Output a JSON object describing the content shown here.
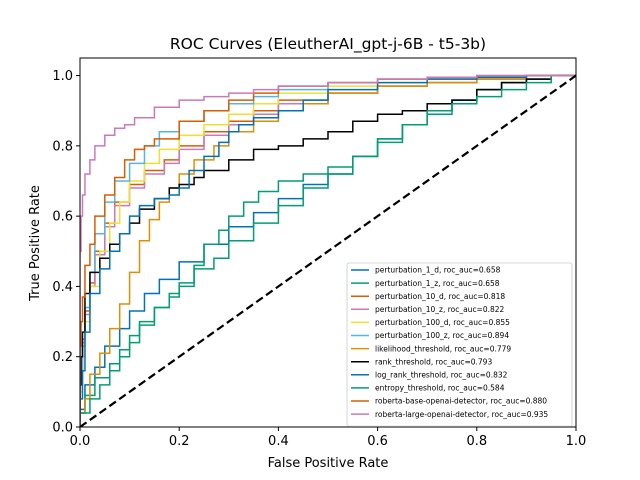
{
  "chart_data": {
    "type": "line",
    "title": "ROC Curves (EleutherAI_gpt-j-6B - t5-3b)",
    "xlabel": "False Positive Rate",
    "ylabel": "True Positive Rate",
    "xlim": [
      0,
      1
    ],
    "ylim": [
      0,
      1.05
    ],
    "xticks": [
      "0.0",
      "0.2",
      "0.4",
      "0.6",
      "0.8",
      "1.0"
    ],
    "yticks": [
      "0.0",
      "0.2",
      "0.4",
      "0.6",
      "0.8",
      "1.0"
    ],
    "grid": false,
    "legend_position": "lower-right",
    "diagonal": {
      "color": "#000000",
      "style": "dashed",
      "points": [
        [
          0,
          0
        ],
        [
          1,
          1
        ]
      ]
    },
    "series": [
      {
        "name": "perturbation_1_d, roc_auc=0.658",
        "color": "#0173b2",
        "points": [
          [
            0,
            0
          ],
          [
            0.01,
            0.05
          ],
          [
            0.03,
            0.12
          ],
          [
            0.05,
            0.17
          ],
          [
            0.08,
            0.23
          ],
          [
            0.1,
            0.28
          ],
          [
            0.13,
            0.33
          ],
          [
            0.16,
            0.38
          ],
          [
            0.2,
            0.42
          ],
          [
            0.25,
            0.47
          ],
          [
            0.3,
            0.52
          ],
          [
            0.35,
            0.57
          ],
          [
            0.4,
            0.61
          ],
          [
            0.45,
            0.65
          ],
          [
            0.5,
            0.69
          ],
          [
            0.55,
            0.72
          ],
          [
            0.6,
            0.77
          ],
          [
            0.65,
            0.82
          ],
          [
            0.7,
            0.86
          ],
          [
            0.75,
            0.9
          ],
          [
            0.8,
            0.93
          ],
          [
            0.85,
            0.96
          ],
          [
            0.9,
            0.98
          ],
          [
            0.95,
            0.99
          ],
          [
            1,
            1
          ]
        ]
      },
      {
        "name": "perturbation_1_z, roc_auc=0.658",
        "color": "#029e73",
        "points": [
          [
            0,
            0
          ],
          [
            0.01,
            0.04
          ],
          [
            0.03,
            0.09
          ],
          [
            0.06,
            0.14
          ],
          [
            0.08,
            0.18
          ],
          [
            0.1,
            0.22
          ],
          [
            0.12,
            0.26
          ],
          [
            0.15,
            0.3
          ],
          [
            0.18,
            0.34
          ],
          [
            0.2,
            0.38
          ],
          [
            0.23,
            0.41
          ],
          [
            0.27,
            0.45
          ],
          [
            0.3,
            0.48
          ],
          [
            0.35,
            0.53
          ],
          [
            0.4,
            0.58
          ],
          [
            0.45,
            0.63
          ],
          [
            0.5,
            0.68
          ],
          [
            0.55,
            0.72
          ],
          [
            0.6,
            0.77
          ],
          [
            0.65,
            0.82
          ],
          [
            0.7,
            0.86
          ],
          [
            0.75,
            0.89
          ],
          [
            0.8,
            0.93
          ],
          [
            0.85,
            0.96
          ],
          [
            0.9,
            0.98
          ],
          [
            0.95,
            0.99
          ],
          [
            1,
            1
          ]
        ]
      },
      {
        "name": "perturbation_10_d, roc_auc=0.818",
        "color": "#d55e00",
        "points": [
          [
            0,
            0
          ],
          [
            0.005,
            0.15
          ],
          [
            0.01,
            0.25
          ],
          [
            0.02,
            0.33
          ],
          [
            0.03,
            0.41
          ],
          [
            0.05,
            0.5
          ],
          [
            0.07,
            0.58
          ],
          [
            0.1,
            0.64
          ],
          [
            0.13,
            0.69
          ],
          [
            0.17,
            0.73
          ],
          [
            0.2,
            0.76
          ],
          [
            0.25,
            0.8
          ],
          [
            0.3,
            0.84
          ],
          [
            0.35,
            0.87
          ],
          [
            0.4,
            0.9
          ],
          [
            0.5,
            0.93
          ],
          [
            0.6,
            0.95
          ],
          [
            0.7,
            0.97
          ],
          [
            0.8,
            0.98
          ],
          [
            0.9,
            0.99
          ],
          [
            1,
            1
          ]
        ]
      },
      {
        "name": "perturbation_10_z, roc_auc=0.822",
        "color": "#cc78bc",
        "points": [
          [
            0,
            0
          ],
          [
            0.005,
            0.14
          ],
          [
            0.01,
            0.24
          ],
          [
            0.02,
            0.32
          ],
          [
            0.03,
            0.4
          ],
          [
            0.05,
            0.49
          ],
          [
            0.07,
            0.57
          ],
          [
            0.1,
            0.63
          ],
          [
            0.13,
            0.68
          ],
          [
            0.17,
            0.72
          ],
          [
            0.2,
            0.75
          ],
          [
            0.25,
            0.79
          ],
          [
            0.3,
            0.83
          ],
          [
            0.35,
            0.86
          ],
          [
            0.4,
            0.89
          ],
          [
            0.5,
            0.92
          ],
          [
            0.6,
            0.95
          ],
          [
            0.7,
            0.97
          ],
          [
            0.8,
            0.98
          ],
          [
            0.9,
            0.99
          ],
          [
            1,
            1
          ]
        ]
      },
      {
        "name": "perturbation_100_d, roc_auc=0.855",
        "color": "#ece133",
        "points": [
          [
            0,
            0
          ],
          [
            0.005,
            0.1
          ],
          [
            0.01,
            0.2
          ],
          [
            0.02,
            0.3
          ],
          [
            0.04,
            0.4
          ],
          [
            0.06,
            0.5
          ],
          [
            0.08,
            0.58
          ],
          [
            0.1,
            0.64
          ],
          [
            0.13,
            0.7
          ],
          [
            0.16,
            0.75
          ],
          [
            0.2,
            0.79
          ],
          [
            0.25,
            0.83
          ],
          [
            0.3,
            0.86
          ],
          [
            0.35,
            0.89
          ],
          [
            0.4,
            0.92
          ],
          [
            0.5,
            0.95
          ],
          [
            0.6,
            0.97
          ],
          [
            0.7,
            0.98
          ],
          [
            0.8,
            0.99
          ],
          [
            0.9,
            0.995
          ],
          [
            1,
            1
          ]
        ]
      },
      {
        "name": "perturbation_100_z, roc_auc=0.894",
        "color": "#56b4e9",
        "points": [
          [
            0,
            0
          ],
          [
            0.005,
            0.12
          ],
          [
            0.01,
            0.23
          ],
          [
            0.02,
            0.34
          ],
          [
            0.03,
            0.44
          ],
          [
            0.05,
            0.55
          ],
          [
            0.07,
            0.64
          ],
          [
            0.1,
            0.7
          ],
          [
            0.13,
            0.75
          ],
          [
            0.16,
            0.8
          ],
          [
            0.2,
            0.84
          ],
          [
            0.25,
            0.87
          ],
          [
            0.3,
            0.9
          ],
          [
            0.35,
            0.92
          ],
          [
            0.4,
            0.94
          ],
          [
            0.5,
            0.96
          ],
          [
            0.6,
            0.98
          ],
          [
            0.7,
            0.99
          ],
          [
            0.8,
            0.995
          ],
          [
            0.9,
            1.0
          ],
          [
            1,
            1
          ]
        ]
      },
      {
        "name": "likelihood_threshold, roc_auc=0.779",
        "color": "#de8f05",
        "points": [
          [
            0,
            0
          ],
          [
            0.01,
            0.04
          ],
          [
            0.02,
            0.08
          ],
          [
            0.04,
            0.15
          ],
          [
            0.06,
            0.21
          ],
          [
            0.08,
            0.28
          ],
          [
            0.1,
            0.35
          ],
          [
            0.12,
            0.44
          ],
          [
            0.14,
            0.53
          ],
          [
            0.16,
            0.59
          ],
          [
            0.18,
            0.64
          ],
          [
            0.2,
            0.68
          ],
          [
            0.23,
            0.72
          ],
          [
            0.27,
            0.76
          ],
          [
            0.3,
            0.8
          ],
          [
            0.35,
            0.84
          ],
          [
            0.4,
            0.87
          ],
          [
            0.45,
            0.9
          ],
          [
            0.5,
            0.92
          ],
          [
            0.6,
            0.95
          ],
          [
            0.7,
            0.97
          ],
          [
            0.8,
            0.98
          ],
          [
            0.9,
            0.99
          ],
          [
            1,
            1
          ]
        ]
      },
      {
        "name": "rank_threshold, roc_auc=0.793",
        "color": "#000000",
        "points": [
          [
            0,
            0
          ],
          [
            0.002,
            0.12
          ],
          [
            0.005,
            0.2
          ],
          [
            0.01,
            0.27
          ],
          [
            0.02,
            0.38
          ],
          [
            0.04,
            0.44
          ],
          [
            0.06,
            0.48
          ],
          [
            0.08,
            0.52
          ],
          [
            0.1,
            0.55
          ],
          [
            0.12,
            0.58
          ],
          [
            0.15,
            0.62
          ],
          [
            0.18,
            0.65
          ],
          [
            0.2,
            0.68
          ],
          [
            0.23,
            0.69
          ],
          [
            0.25,
            0.71
          ],
          [
            0.3,
            0.73
          ],
          [
            0.35,
            0.76
          ],
          [
            0.4,
            0.79
          ],
          [
            0.45,
            0.8
          ],
          [
            0.5,
            0.82
          ],
          [
            0.55,
            0.84
          ],
          [
            0.6,
            0.87
          ],
          [
            0.65,
            0.89
          ],
          [
            0.7,
            0.9
          ],
          [
            0.75,
            0.92
          ],
          [
            0.8,
            0.93
          ],
          [
            0.85,
            0.96
          ],
          [
            0.9,
            0.98
          ],
          [
            0.95,
            0.99
          ],
          [
            1,
            1
          ]
        ]
      },
      {
        "name": "log_rank_threshold, roc_auc=0.832",
        "color": "#0173b2",
        "points": [
          [
            0,
            0
          ],
          [
            0.005,
            0.08
          ],
          [
            0.01,
            0.16
          ],
          [
            0.02,
            0.27
          ],
          [
            0.04,
            0.38
          ],
          [
            0.06,
            0.45
          ],
          [
            0.08,
            0.5
          ],
          [
            0.1,
            0.55
          ],
          [
            0.12,
            0.6
          ],
          [
            0.15,
            0.63
          ],
          [
            0.18,
            0.65
          ],
          [
            0.2,
            0.66
          ],
          [
            0.22,
            0.68
          ],
          [
            0.25,
            0.73
          ],
          [
            0.28,
            0.77
          ],
          [
            0.3,
            0.81
          ],
          [
            0.32,
            0.84
          ],
          [
            0.35,
            0.86
          ],
          [
            0.4,
            0.88
          ],
          [
            0.45,
            0.9
          ],
          [
            0.5,
            0.93
          ],
          [
            0.6,
            0.96
          ],
          [
            0.7,
            0.98
          ],
          [
            0.8,
            0.99
          ],
          [
            0.9,
            0.995
          ],
          [
            1,
            1
          ]
        ]
      },
      {
        "name": "entropy_threshold, roc_auc=0.584",
        "color": "#029e73",
        "points": [
          [
            0,
            0
          ],
          [
            0.02,
            0.04
          ],
          [
            0.04,
            0.08
          ],
          [
            0.06,
            0.12
          ],
          [
            0.08,
            0.16
          ],
          [
            0.1,
            0.2
          ],
          [
            0.12,
            0.24
          ],
          [
            0.15,
            0.29
          ],
          [
            0.18,
            0.34
          ],
          [
            0.2,
            0.37
          ],
          [
            0.23,
            0.4
          ],
          [
            0.25,
            0.46
          ],
          [
            0.28,
            0.52
          ],
          [
            0.3,
            0.56
          ],
          [
            0.33,
            0.6
          ],
          [
            0.36,
            0.64
          ],
          [
            0.4,
            0.67
          ],
          [
            0.45,
            0.7
          ],
          [
            0.5,
            0.72
          ],
          [
            0.55,
            0.74
          ],
          [
            0.6,
            0.77
          ],
          [
            0.65,
            0.81
          ],
          [
            0.7,
            0.86
          ],
          [
            0.75,
            0.9
          ],
          [
            0.8,
            0.92
          ],
          [
            0.85,
            0.94
          ],
          [
            0.9,
            0.96
          ],
          [
            0.95,
            0.98
          ],
          [
            1,
            1
          ]
        ]
      },
      {
        "name": "roberta-base-openai-detector, roc_auc=0.880",
        "color": "#d55e00",
        "points": [
          [
            0,
            0
          ],
          [
            0.002,
            0.23
          ],
          [
            0.005,
            0.3
          ],
          [
            0.01,
            0.37
          ],
          [
            0.02,
            0.46
          ],
          [
            0.03,
            0.52
          ],
          [
            0.05,
            0.6
          ],
          [
            0.07,
            0.66
          ],
          [
            0.09,
            0.71
          ],
          [
            0.11,
            0.76
          ],
          [
            0.13,
            0.79
          ],
          [
            0.15,
            0.8
          ],
          [
            0.2,
            0.82
          ],
          [
            0.25,
            0.87
          ],
          [
            0.3,
            0.9
          ],
          [
            0.35,
            0.93
          ],
          [
            0.4,
            0.95
          ],
          [
            0.5,
            0.97
          ],
          [
            0.6,
            0.98
          ],
          [
            0.7,
            0.99
          ],
          [
            0.8,
            0.995
          ],
          [
            0.9,
            1.0
          ],
          [
            1,
            1
          ]
        ]
      },
      {
        "name": "roberta-large-openai-detector, roc_auc=0.935",
        "color": "#cc78bc",
        "points": [
          [
            0,
            0
          ],
          [
            0.002,
            0.5
          ],
          [
            0.005,
            0.6
          ],
          [
            0.01,
            0.66
          ],
          [
            0.02,
            0.72
          ],
          [
            0.03,
            0.76
          ],
          [
            0.05,
            0.8
          ],
          [
            0.07,
            0.83
          ],
          [
            0.09,
            0.85
          ],
          [
            0.11,
            0.86
          ],
          [
            0.15,
            0.88
          ],
          [
            0.2,
            0.91
          ],
          [
            0.25,
            0.93
          ],
          [
            0.3,
            0.94
          ],
          [
            0.35,
            0.95
          ],
          [
            0.4,
            0.96
          ],
          [
            0.5,
            0.97
          ],
          [
            0.6,
            0.98
          ],
          [
            0.7,
            0.99
          ],
          [
            0.8,
            0.995
          ],
          [
            0.9,
            1.0
          ],
          [
            1,
            1
          ]
        ]
      }
    ]
  }
}
